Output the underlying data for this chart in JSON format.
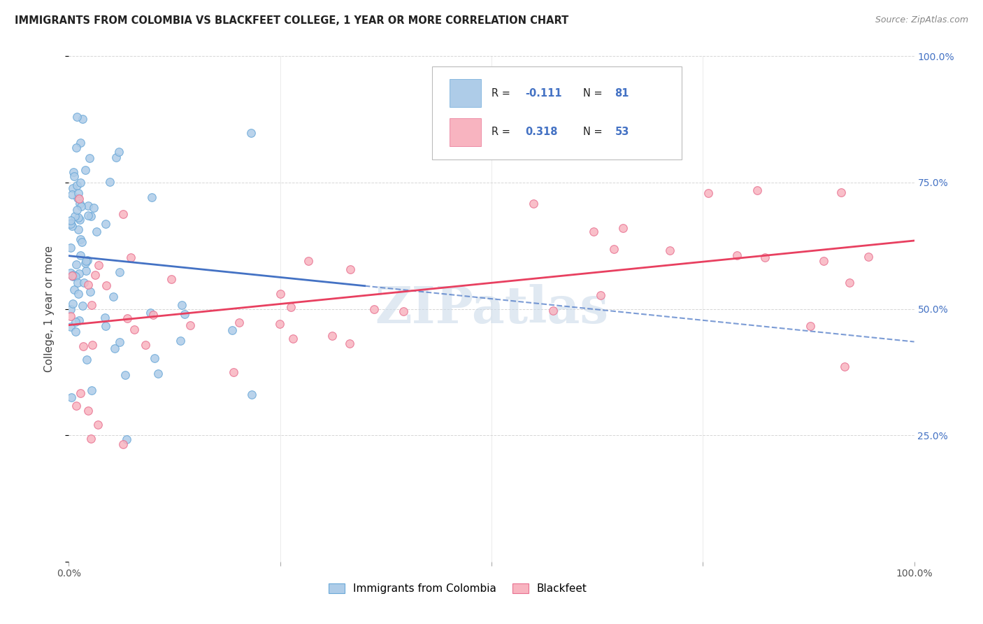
{
  "title": "IMMIGRANTS FROM COLOMBIA VS BLACKFEET COLLEGE, 1 YEAR OR MORE CORRELATION CHART",
  "source": "Source: ZipAtlas.com",
  "ylabel": "College, 1 year or more",
  "legend_label1": "Immigrants from Colombia",
  "legend_label2": "Blackfeet",
  "R1": -0.111,
  "N1": 81,
  "R2": 0.318,
  "N2": 53,
  "color1_face": "#aecce8",
  "color1_edge": "#6aa8d8",
  "color2_face": "#f8b4c0",
  "color2_edge": "#e87090",
  "trend1_color": "#4472c4",
  "trend2_color": "#e84060",
  "watermark": "ZIPatlas",
  "xlim": [
    0.0,
    1.0
  ],
  "ylim": [
    0.0,
    1.0
  ],
  "grid_color": "#cccccc",
  "right_tick_color": "#4472c4",
  "title_color": "#222222",
  "source_color": "#888888",
  "ylabel_color": "#444444",
  "blue_trend_x0": 0.0,
  "blue_trend_y0": 0.605,
  "blue_trend_x1": 1.0,
  "blue_trend_y1": 0.435,
  "pink_trend_x0": 0.0,
  "pink_trend_y0": 0.468,
  "pink_trend_x1": 1.0,
  "pink_trend_y1": 0.635
}
